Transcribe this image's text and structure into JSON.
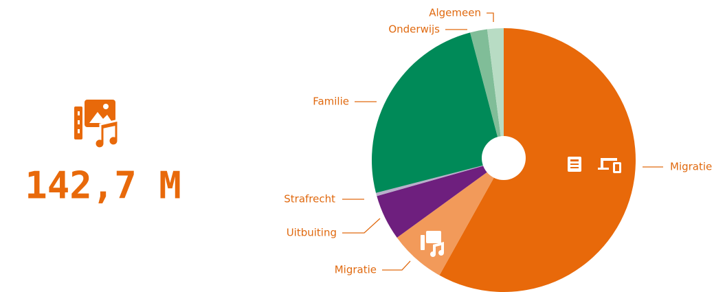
{
  "summary": {
    "total": "142,7 M"
  },
  "chart_data": {
    "type": "pie",
    "categories": [
      "Migratie",
      "Migratie",
      "Uitbuiting",
      "Strafrecht",
      "Familie",
      "Onderwijs",
      "Algemeen"
    ],
    "values": [
      58.1,
      6.9,
      5.6,
      0.4,
      24.9,
      2.1,
      2.0
    ],
    "colors": [
      "#e8690a",
      "#f29a5a",
      "#6e1f7e",
      "#b9aecb",
      "#008a58",
      "#80bd98",
      "#b8dcc4"
    ]
  }
}
